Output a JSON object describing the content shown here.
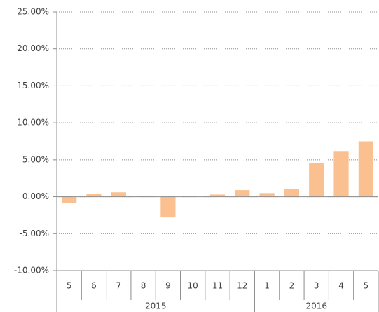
{
  "chart_data": {
    "type": "bar",
    "categories": [
      "5",
      "6",
      "7",
      "8",
      "9",
      "10",
      "11",
      "12",
      "1",
      "2",
      "3",
      "4",
      "5"
    ],
    "category_groups": [
      "2015",
      "2015",
      "2015",
      "2015",
      "2015",
      "2015",
      "2015",
      "2015",
      "2016",
      "2016",
      "2016",
      "2016",
      "2016"
    ],
    "values": [
      -0.8,
      0.4,
      0.6,
      0.15,
      -2.8,
      0,
      0.3,
      0.9,
      0.5,
      1.1,
      4.6,
      6.1,
      7.5
    ],
    "color": "#fac090",
    "ylim": [
      -10,
      25
    ],
    "yticks": [
      {
        "value": -10,
        "label": "-10.00%"
      },
      {
        "value": -5,
        "label": "-5.00%"
      },
      {
        "value": 0,
        "label": "0.00%"
      },
      {
        "value": 5,
        "label": "5.00%"
      },
      {
        "value": 10,
        "label": "10.00%"
      },
      {
        "value": 15,
        "label": "15.00%"
      },
      {
        "value": 20,
        "label": "20.00%"
      },
      {
        "value": 25,
        "label": "25.00%"
      }
    ],
    "grid": true
  }
}
